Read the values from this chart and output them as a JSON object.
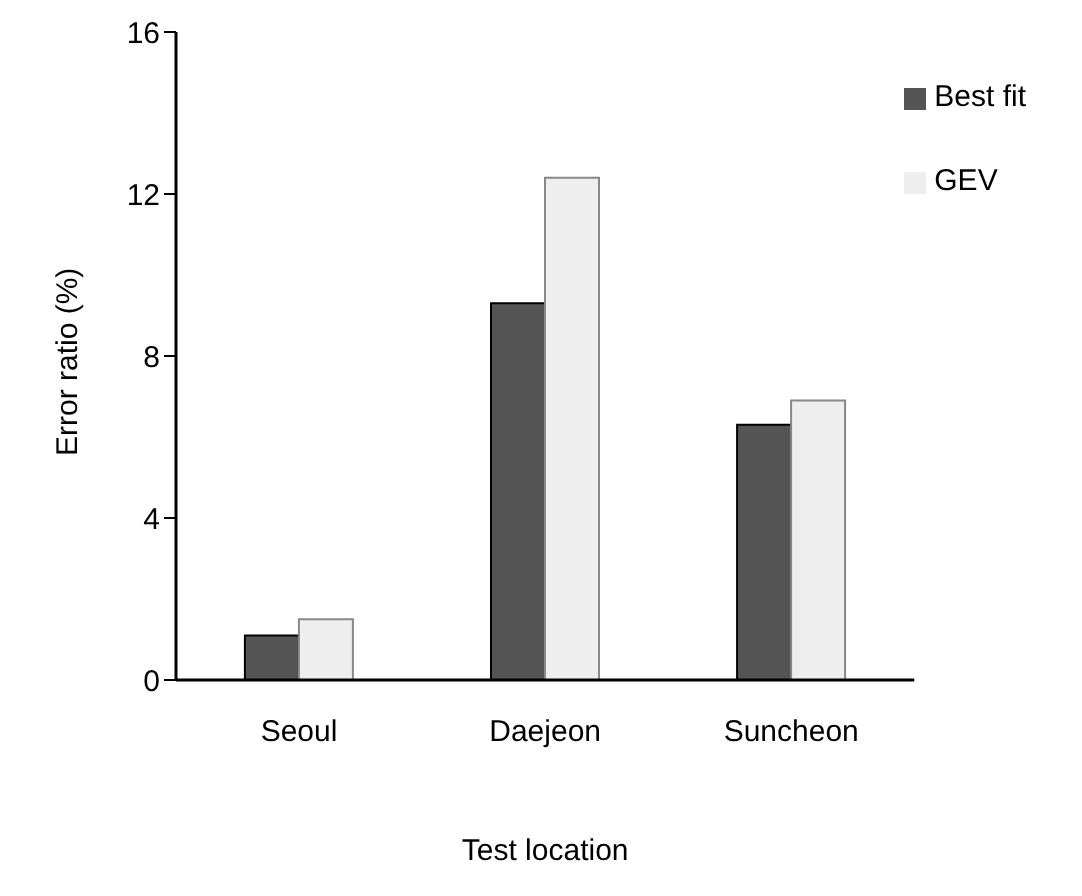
{
  "chart_data": {
    "type": "bar",
    "xlabel": "Test location",
    "ylabel": "Error ratio (%)",
    "categories": [
      "Seoul",
      "Daejeon",
      "Suncheon"
    ],
    "series": [
      {
        "name": "Best fit",
        "color": "#555555",
        "values": [
          1.1,
          9.3,
          6.3
        ]
      },
      {
        "name": "GEV",
        "color": "#eeeeee",
        "values": [
          1.5,
          12.4,
          6.9
        ]
      }
    ],
    "ylim": [
      0,
      16
    ],
    "yticks": [
      0,
      4,
      8,
      12,
      16
    ],
    "grid": false,
    "legend": "top right"
  }
}
